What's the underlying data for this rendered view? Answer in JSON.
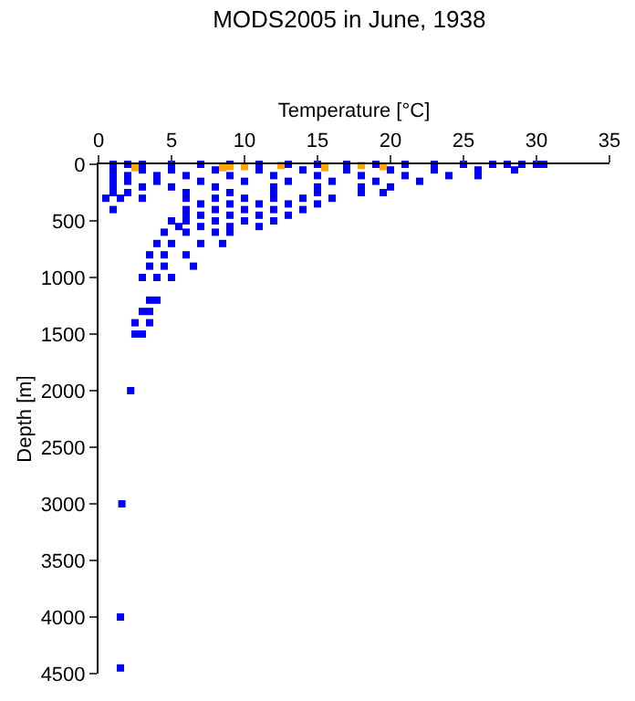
{
  "chart_data": {
    "type": "scatter",
    "title": "MODS2005 in June, 1938",
    "xlabel": "Temperature [°C]",
    "ylabel": "Depth [m]",
    "xlim": [
      0,
      35
    ],
    "ylim": [
      4500,
      0
    ],
    "xticks": [
      0,
      5,
      10,
      15,
      20,
      25,
      30,
      35
    ],
    "yticks": [
      0,
      500,
      1000,
      1500,
      2000,
      2500,
      3000,
      3500,
      4000,
      4500
    ],
    "marker": "square",
    "series": [
      {
        "color": "#0000ff",
        "x": [
          1,
          2,
          3,
          5,
          7,
          9,
          11,
          13,
          15,
          17,
          19,
          21,
          23,
          25,
          27,
          28,
          29,
          30,
          30.5,
          1,
          3,
          5,
          8,
          11,
          14,
          17,
          20,
          23,
          26,
          28.5,
          1,
          2,
          4,
          6,
          9,
          12,
          15,
          18,
          21,
          24,
          26,
          1,
          2,
          4,
          7,
          10,
          13,
          16,
          19,
          22,
          1,
          3,
          5,
          8,
          12,
          15,
          18,
          20,
          1,
          2,
          6,
          9,
          12,
          15,
          18,
          19.5,
          0.5,
          1.5,
          3,
          6,
          8,
          10,
          12,
          14,
          16,
          7,
          9,
          11,
          13,
          15,
          1,
          6,
          8,
          10,
          12,
          14,
          6,
          7,
          9,
          11,
          13,
          5,
          6,
          8,
          10,
          12,
          5.5,
          7,
          9,
          11,
          4.5,
          6,
          8,
          9,
          4,
          5,
          7,
          8.5,
          3.5,
          4.5,
          6,
          3.5,
          4.5,
          6.5,
          3,
          4,
          5,
          3.5,
          4,
          3,
          3.5,
          2.5,
          3.5,
          2.5,
          3,
          2.2,
          1.6,
          1.5,
          1.5
        ],
        "values": [
          0,
          0,
          0,
          0,
          0,
          0,
          0,
          0,
          0,
          0,
          0,
          0,
          0,
          0,
          0,
          0,
          0,
          0,
          0,
          50,
          50,
          50,
          50,
          50,
          50,
          50,
          50,
          50,
          50,
          50,
          100,
          100,
          100,
          100,
          100,
          100,
          100,
          100,
          100,
          100,
          100,
          150,
          150,
          150,
          150,
          150,
          150,
          150,
          150,
          150,
          200,
          200,
          200,
          200,
          200,
          200,
          200,
          200,
          250,
          250,
          250,
          250,
          250,
          250,
          250,
          250,
          300,
          300,
          300,
          300,
          300,
          300,
          300,
          300,
          300,
          350,
          350,
          350,
          350,
          350,
          400,
          400,
          400,
          400,
          400,
          400,
          450,
          450,
          450,
          450,
          450,
          500,
          500,
          500,
          500,
          500,
          550,
          550,
          550,
          550,
          600,
          600,
          600,
          600,
          700,
          700,
          700,
          700,
          800,
          800,
          800,
          900,
          900,
          900,
          1000,
          1000,
          1000,
          1200,
          1200,
          1300,
          1300,
          1400,
          1400,
          1500,
          1500,
          2000,
          3000,
          4000,
          4450
        ]
      },
      {
        "color": "#ffa500",
        "x": [
          2.5,
          8.5,
          9,
          10,
          12.5,
          15.5,
          18,
          19.5
        ],
        "values": [
          30,
          30,
          20,
          20,
          10,
          30,
          10,
          20
        ]
      }
    ]
  }
}
